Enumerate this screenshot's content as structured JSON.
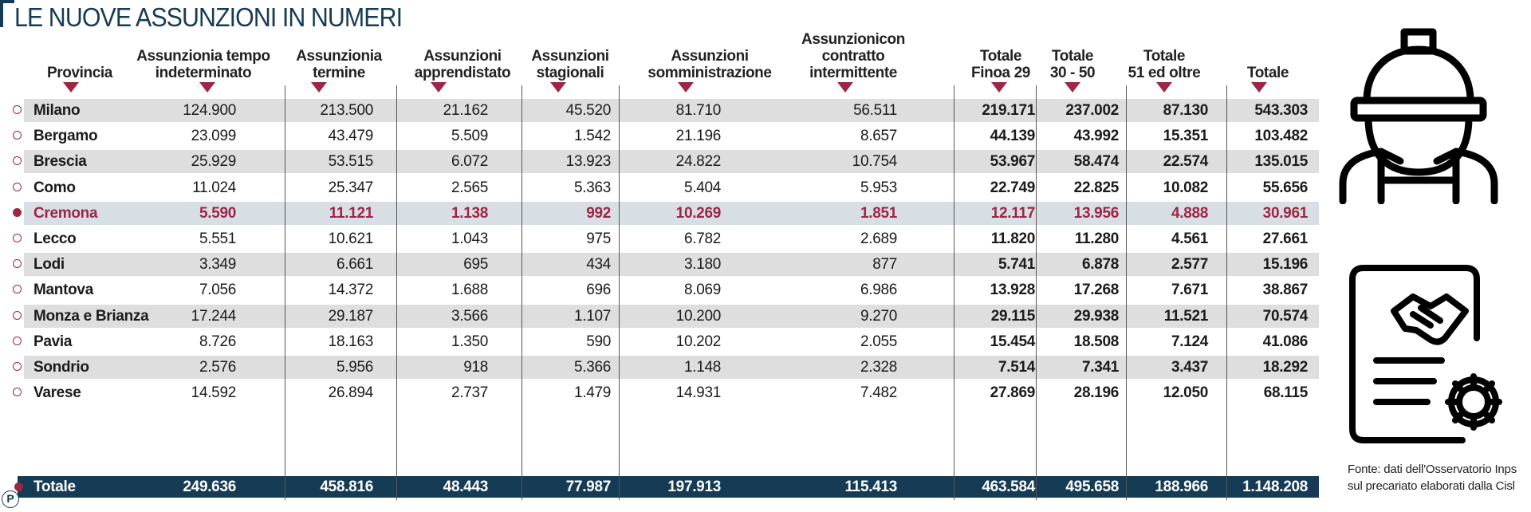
{
  "title": "LE NUOVE ASSUNZIONI IN NUMERI",
  "colors": {
    "accent": "#9c2645",
    "navy": "#163b55",
    "shade": "#dedede",
    "highlight": "#d8dfe4"
  },
  "icons": [
    "worker-helmet-icon",
    "contract-handshake-gear-icon"
  ],
  "chart_data": {
    "type": "table",
    "columns": [
      "Provincia",
      "Assunzionia tempo\nindeterminato",
      "Assunzionia\ntermine",
      "Assunzioni\napprendistato",
      "Assunzioni\nstagionali",
      "Assunzioni\nsomministrazione",
      "Assunzionicon contratto\nintermittente",
      "Totale\nFinoa 29",
      "Totale\n30 - 50",
      "Totale\n51 ed oltre",
      "Totale"
    ],
    "rows": [
      [
        "Milano",
        "124.900",
        "213.500",
        "21.162",
        "45.520",
        "81.710",
        "56.511",
        "219.171",
        "237.002",
        "87.130",
        "543.303"
      ],
      [
        "Bergamo",
        "23.099",
        "43.479",
        "5.509",
        "1.542",
        "21.196",
        "8.657",
        "44.139",
        "43.992",
        "15.351",
        "103.482"
      ],
      [
        "Brescia",
        "25.929",
        "53.515",
        "6.072",
        "13.923",
        "24.822",
        "10.754",
        "53.967",
        "58.474",
        "22.574",
        "135.015"
      ],
      [
        "Como",
        "11.024",
        "25.347",
        "2.565",
        "5.363",
        "5.404",
        "5.953",
        "22.749",
        "22.825",
        "10.082",
        "55.656"
      ],
      [
        "Cremona",
        "5.590",
        "11.121",
        "1.138",
        "992",
        "10.269",
        "1.851",
        "12.117",
        "13.956",
        "4.888",
        "30.961"
      ],
      [
        "Lecco",
        "5.551",
        "10.621",
        "1.043",
        "975",
        "6.782",
        "2.689",
        "11.820",
        "11.280",
        "4.561",
        "27.661"
      ],
      [
        "Lodi",
        "3.349",
        "6.661",
        "695",
        "434",
        "3.180",
        "877",
        "5.741",
        "6.878",
        "2.577",
        "15.196"
      ],
      [
        "Mantova",
        "7.056",
        "14.372",
        "1.688",
        "696",
        "8.069",
        "6.986",
        "13.928",
        "17.268",
        "7.671",
        "38.867"
      ],
      [
        "Monza e Brianza",
        "17.244",
        "29.187",
        "3.566",
        "1.107",
        "10.200",
        "9.270",
        "29.115",
        "29.938",
        "11.521",
        "70.574"
      ],
      [
        "Pavia",
        "8.726",
        "18.163",
        "1.350",
        "590",
        "10.202",
        "2.055",
        "15.454",
        "18.508",
        "7.124",
        "41.086"
      ],
      [
        "Sondrio",
        "2.576",
        "5.956",
        "918",
        "5.366",
        "1.148",
        "2.328",
        "7.514",
        "7.341",
        "3.437",
        "18.292"
      ],
      [
        "Varese",
        "14.592",
        "26.894",
        "2.737",
        "1.479",
        "14.931",
        "7.482",
        "27.869",
        "28.196",
        "12.050",
        "68.115"
      ]
    ],
    "highlight_row": "Cremona",
    "total_row": [
      "Totale",
      "249.636",
      "458.816",
      "48.443",
      "77.987",
      "197.913",
      "115.413",
      "463.584",
      "495.658",
      "188.966",
      "1.148.208"
    ]
  },
  "source_note": "Fonte: dati dell'Osservatorio Inps\nsul precariato elaborati dalla Cisl",
  "logo_letter": "P"
}
